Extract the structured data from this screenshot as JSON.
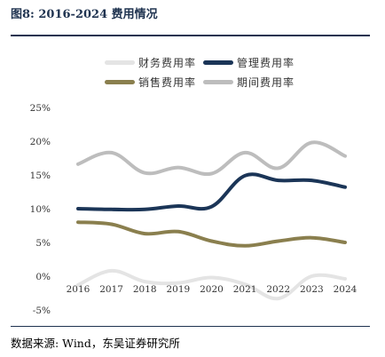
{
  "title": "图8:  2016-2024 费用情况",
  "source": "数据来源:  Wind，东吴证券研究所",
  "chart_data": {
    "type": "line",
    "x": [
      "2016",
      "2017",
      "2018",
      "2019",
      "2020",
      "2021",
      "2022",
      "2023",
      "2024"
    ],
    "ylim": [
      -5,
      25
    ],
    "yticks": [
      "-5%",
      "0%",
      "5%",
      "10%",
      "15%",
      "20%",
      "25%"
    ],
    "ytick_values": [
      -5,
      0,
      5,
      10,
      15,
      20,
      25
    ],
    "grid": false,
    "legend_placement": "top",
    "series": [
      {
        "name": "财务费用率",
        "color": "#e4e4e4",
        "values": [
          -1.3,
          0.8,
          -0.8,
          -1.0,
          -0.2,
          -1.2,
          -3.3,
          0.0,
          -0.4
        ]
      },
      {
        "name": "管理费用率",
        "color": "#1b3557",
        "values": [
          10.0,
          9.9,
          9.9,
          10.4,
          10.3,
          14.9,
          14.2,
          14.2,
          13.2
        ]
      },
      {
        "name": "销售费用率",
        "color": "#8a7f4e",
        "values": [
          8.0,
          7.7,
          6.3,
          6.6,
          5.2,
          4.5,
          5.2,
          5.7,
          5.0
        ]
      },
      {
        "name": "期间费用率",
        "color": "#bdbdbd",
        "values": [
          16.6,
          18.3,
          15.3,
          16.1,
          15.2,
          18.3,
          16.0,
          19.8,
          17.8
        ]
      }
    ]
  }
}
